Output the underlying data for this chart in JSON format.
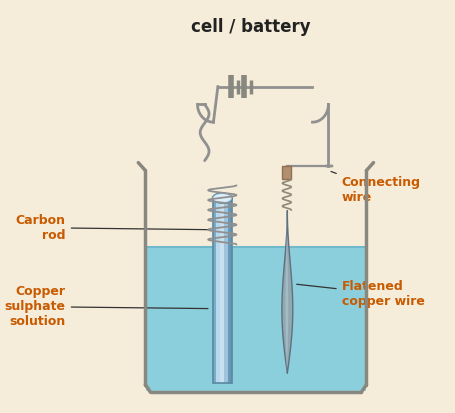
{
  "bg_color": "#f5edda",
  "title": "cell / battery",
  "title_fontsize": 12,
  "beaker_edge": "#888880",
  "beaker_fill": "#f5edda",
  "solution_color": "#8ccfdc",
  "solution_edge": "#70b8cc",
  "carbon_rod_color_light": "#c8dce8",
  "carbon_rod_color_mid": "#90b8cc",
  "carbon_rod_color_dark": "#5888a0",
  "wire_color": "#909090",
  "wire_lw": 2.0,
  "battery_color": "#888880",
  "coil_color": "#909090",
  "copper_flat_color": "#90a8b0",
  "copper_flat_edge": "#607080",
  "copper_connector_color": "#b09070",
  "label_color": "#c85a00",
  "label_fontsize": 9,
  "annotation_color": "#333333",
  "labels": {
    "carbon_rod": "Carbon\nrod",
    "copper_sulphate": "Copper\nsulphate\nsolution",
    "connecting_wire": "Connecting\nwire",
    "flatened_copper": "Flatened\ncopper wire"
  }
}
